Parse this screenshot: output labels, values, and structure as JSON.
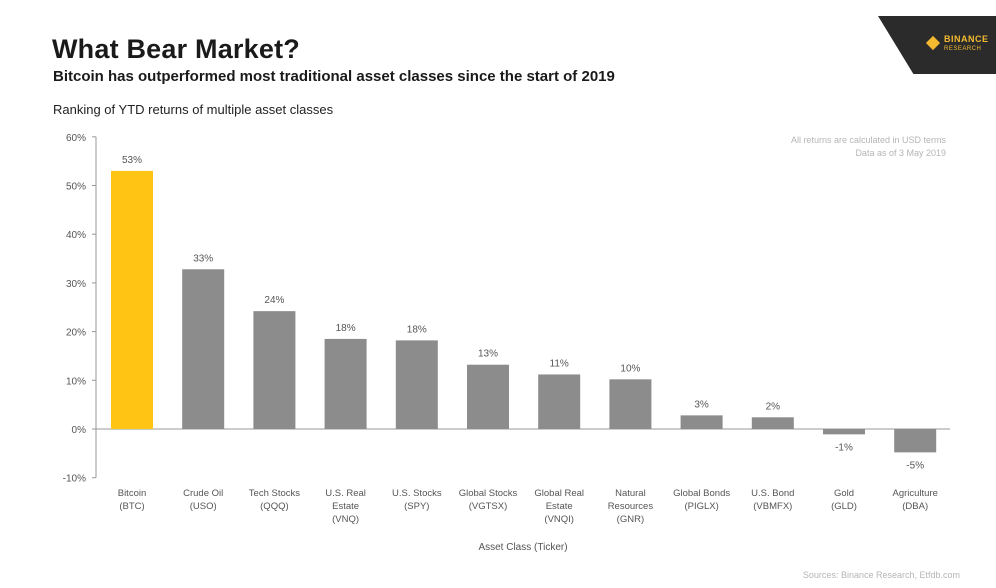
{
  "header": {
    "title": "What Bear Market?",
    "subtitle": "Bitcoin has outperformed most traditional asset classes since the start of 2019",
    "section_label": "Ranking of YTD returns of multiple asset classes"
  },
  "brand": {
    "name": "BINANCE",
    "sub": "RESEARCH",
    "icon": "binance-diamond-icon",
    "accent": "#F3BA2F"
  },
  "notes": {
    "line1": "All returns are calculated in USD terms",
    "line2": "Data as of 3 May 2019"
  },
  "sources": "Sources: Binance Research, Etfdb.com",
  "colors": {
    "highlight": "#FFC414",
    "bar": "#8C8C8C",
    "axis": "#999999",
    "text": "#555555"
  },
  "chart_data": {
    "type": "bar",
    "title": "What Bear Market?",
    "xlabel": "Asset Class (Ticker)",
    "ylabel": "",
    "ylim": [
      -10,
      60
    ],
    "yticks": [
      "-10%",
      "0%",
      "10%",
      "20%",
      "30%",
      "40%",
      "50%",
      "60%"
    ],
    "ytick_values": [
      -10,
      0,
      10,
      20,
      30,
      40,
      50,
      60
    ],
    "grid": false,
    "categories": [
      [
        "Bitcoin",
        "(BTC)"
      ],
      [
        "Crude Oil",
        "(USO)"
      ],
      [
        "Tech Stocks",
        "(QQQ)"
      ],
      [
        "U.S. Real",
        "Estate",
        "(VNQ)"
      ],
      [
        "U.S. Stocks",
        "(SPY)"
      ],
      [
        "Global Stocks",
        "(VGTSX)"
      ],
      [
        "Global Real",
        "Estate",
        "(VNQI)"
      ],
      [
        "Natural",
        "Resources",
        "(GNR)"
      ],
      [
        "Global Bonds",
        "(PIGLX)"
      ],
      [
        "U.S. Bond",
        "(VBMFX)"
      ],
      [
        "Gold",
        "(GLD)"
      ],
      [
        "Agriculture",
        "(DBA)"
      ]
    ],
    "values": [
      53,
      32.8,
      24.2,
      18.5,
      18.2,
      13.2,
      11.2,
      10.2,
      2.8,
      2.4,
      -1.1,
      -4.8
    ],
    "data_labels": [
      "53%",
      "33%",
      "24%",
      "18%",
      "18%",
      "13%",
      "11%",
      "10%",
      "3%",
      "2%",
      "-1%",
      "-5%"
    ],
    "highlight_index": 0
  }
}
